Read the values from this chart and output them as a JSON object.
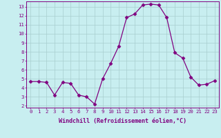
{
  "x": [
    0,
    1,
    2,
    3,
    4,
    5,
    6,
    7,
    8,
    9,
    10,
    11,
    12,
    13,
    14,
    15,
    16,
    17,
    18,
    19,
    20,
    21,
    22,
    23
  ],
  "y": [
    4.7,
    4.7,
    4.6,
    3.2,
    4.6,
    4.5,
    3.2,
    3.0,
    2.2,
    5.0,
    6.7,
    8.6,
    11.8,
    12.2,
    13.2,
    13.3,
    13.2,
    11.8,
    7.9,
    7.3,
    5.2,
    4.3,
    4.4,
    4.8
  ],
  "line_color": "#800080",
  "marker": "D",
  "marker_size": 2.5,
  "background_color": "#c8eef0",
  "grid_color": "#a8cece",
  "xlabel": "Windchill (Refroidissement éolien,°C)",
  "xlim": [
    -0.5,
    23.5
  ],
  "ylim": [
    1.8,
    13.6
  ],
  "yticks": [
    2,
    3,
    4,
    5,
    6,
    7,
    8,
    9,
    10,
    11,
    12,
    13
  ],
  "xticks": [
    0,
    1,
    2,
    3,
    4,
    5,
    6,
    7,
    8,
    9,
    10,
    11,
    12,
    13,
    14,
    15,
    16,
    17,
    18,
    19,
    20,
    21,
    22,
    23
  ],
  "tick_color": "#800080",
  "label_color": "#800080",
  "spine_color": "#800080",
  "tick_fontsize": 5.2,
  "xlabel_fontsize": 6.0
}
